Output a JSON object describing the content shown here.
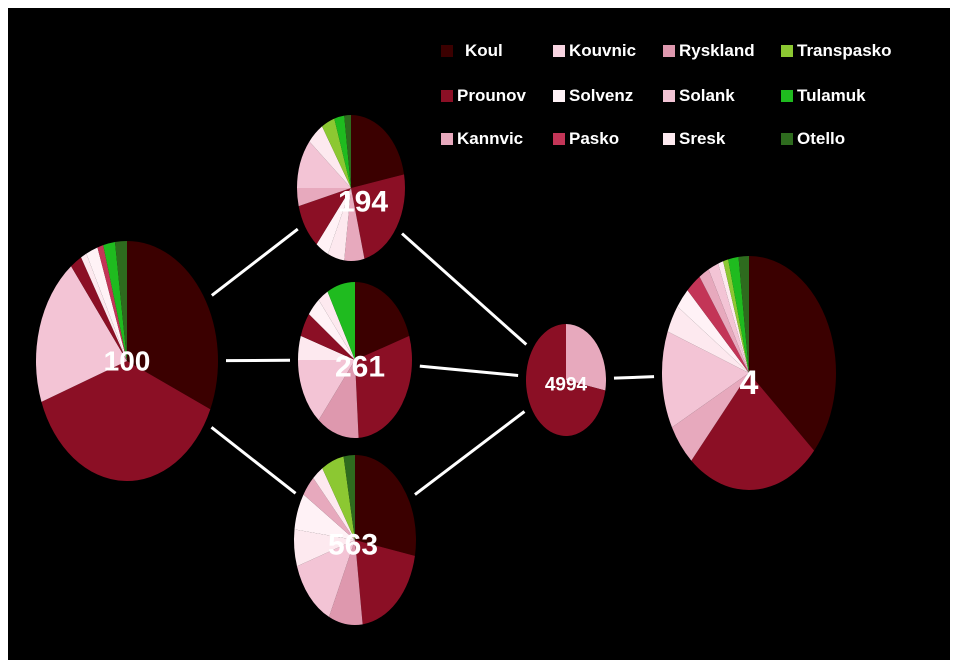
{
  "legend": [
    {
      "name": "Koul",
      "color": "#3b0000"
    },
    {
      "name": "Kouvnic",
      "color": "#f7d3e0"
    },
    {
      "name": "Ryskland",
      "color": "#de98ae"
    },
    {
      "name": "Transpasko",
      "color": "#8cc832"
    },
    {
      "name": "Prounov",
      "color": "#8b0f25"
    },
    {
      "name": "Solvenz",
      "color": "#fff2f6"
    },
    {
      "name": "Solank",
      "color": "#f3c4d5"
    },
    {
      "name": "Tulamuk",
      "color": "#1fbb1f"
    },
    {
      "name": "Kannvic",
      "color": "#e7a9bd"
    },
    {
      "name": "Pasko",
      "color": "#c33557"
    },
    {
      "name": "Sresk",
      "color": "#fde9ef"
    },
    {
      "name": "Otello",
      "color": "#2e6b1e"
    }
  ],
  "nodes": [
    {
      "id": "n100",
      "label": "100",
      "slices": [
        {
          "name": "Koul",
          "value": 30
        },
        {
          "name": "Prounov",
          "value": 36
        },
        {
          "name": "Solank",
          "value": 19
        },
        {
          "name": "Prounov",
          "value": 2
        },
        {
          "name": "Sresk",
          "value": 1
        },
        {
          "name": "Solvenz",
          "value": 2
        },
        {
          "name": "Pasko",
          "value": 1
        },
        {
          "name": "Tulamuk",
          "value": 2
        },
        {
          "name": "Otello",
          "value": 2
        }
      ]
    },
    {
      "id": "n194",
      "label": "194",
      "slices": [
        {
          "name": "Koul",
          "value": 22
        },
        {
          "name": "Prounov",
          "value": 24
        },
        {
          "name": "Kannvic",
          "value": 6
        },
        {
          "name": "Sresk",
          "value": 5
        },
        {
          "name": "Solvenz",
          "value": 4
        },
        {
          "name": "Prounov",
          "value": 10
        },
        {
          "name": "Kannvic",
          "value": 4
        },
        {
          "name": "Solank",
          "value": 11
        },
        {
          "name": "Sresk",
          "value": 5
        },
        {
          "name": "Transpasko",
          "value": 4
        },
        {
          "name": "Tulamuk",
          "value": 3
        },
        {
          "name": "Otello",
          "value": 2
        }
      ]
    },
    {
      "id": "n261",
      "label": "261",
      "slices": [
        {
          "name": "Koul",
          "value": 20
        },
        {
          "name": "Prounov",
          "value": 29
        },
        {
          "name": "Ryskland",
          "value": 12
        },
        {
          "name": "Solank",
          "value": 14
        },
        {
          "name": "Sresk",
          "value": 5
        },
        {
          "name": "Prounov",
          "value": 5
        },
        {
          "name": "Solvenz",
          "value": 4
        },
        {
          "name": "Sresk",
          "value": 3
        },
        {
          "name": "Tulamuk",
          "value": 8
        }
      ]
    },
    {
      "id": "n563",
      "label": "563",
      "slices": [
        {
          "name": "Koul",
          "value": 28
        },
        {
          "name": "Prounov",
          "value": 20
        },
        {
          "name": "Ryskland",
          "value": 9
        },
        {
          "name": "Solank",
          "value": 13
        },
        {
          "name": "Sresk",
          "value": 7
        },
        {
          "name": "Solvenz",
          "value": 7
        },
        {
          "name": "Kannvic",
          "value": 4
        },
        {
          "name": "Sresk",
          "value": 3
        },
        {
          "name": "Transpasko",
          "value": 6
        },
        {
          "name": "Otello",
          "value": 3
        }
      ]
    },
    {
      "id": "n4994",
      "label": "4994",
      "slices": [
        {
          "name": "Kannvic",
          "value": 28
        },
        {
          "name": "Prounov",
          "value": 72
        }
      ]
    },
    {
      "id": "n4",
      "label": "4",
      "slices": [
        {
          "name": "Koul",
          "value": 38
        },
        {
          "name": "Prounov",
          "value": 26
        },
        {
          "name": "Kannvic",
          "value": 6
        },
        {
          "name": "Solank",
          "value": 14
        },
        {
          "name": "Sresk",
          "value": 4
        },
        {
          "name": "Solvenz",
          "value": 3
        },
        {
          "name": "Pasko",
          "value": 3
        },
        {
          "name": "Kannvic",
          "value": 2
        },
        {
          "name": "Solank",
          "value": 2
        },
        {
          "name": "Sresk",
          "value": 1
        },
        {
          "name": "Transpasko",
          "value": 1
        },
        {
          "name": "Tulamuk",
          "value": 2
        },
        {
          "name": "Otello",
          "value": 2
        }
      ]
    }
  ],
  "edges": [
    {
      "from": "n100",
      "to": "n194"
    },
    {
      "from": "n100",
      "to": "n261"
    },
    {
      "from": "n100",
      "to": "n563"
    },
    {
      "from": "n194",
      "to": "n4994"
    },
    {
      "from": "n261",
      "to": "n4994"
    },
    {
      "from": "n563",
      "to": "n4994"
    },
    {
      "from": "n4994",
      "to": "n4"
    }
  ]
}
